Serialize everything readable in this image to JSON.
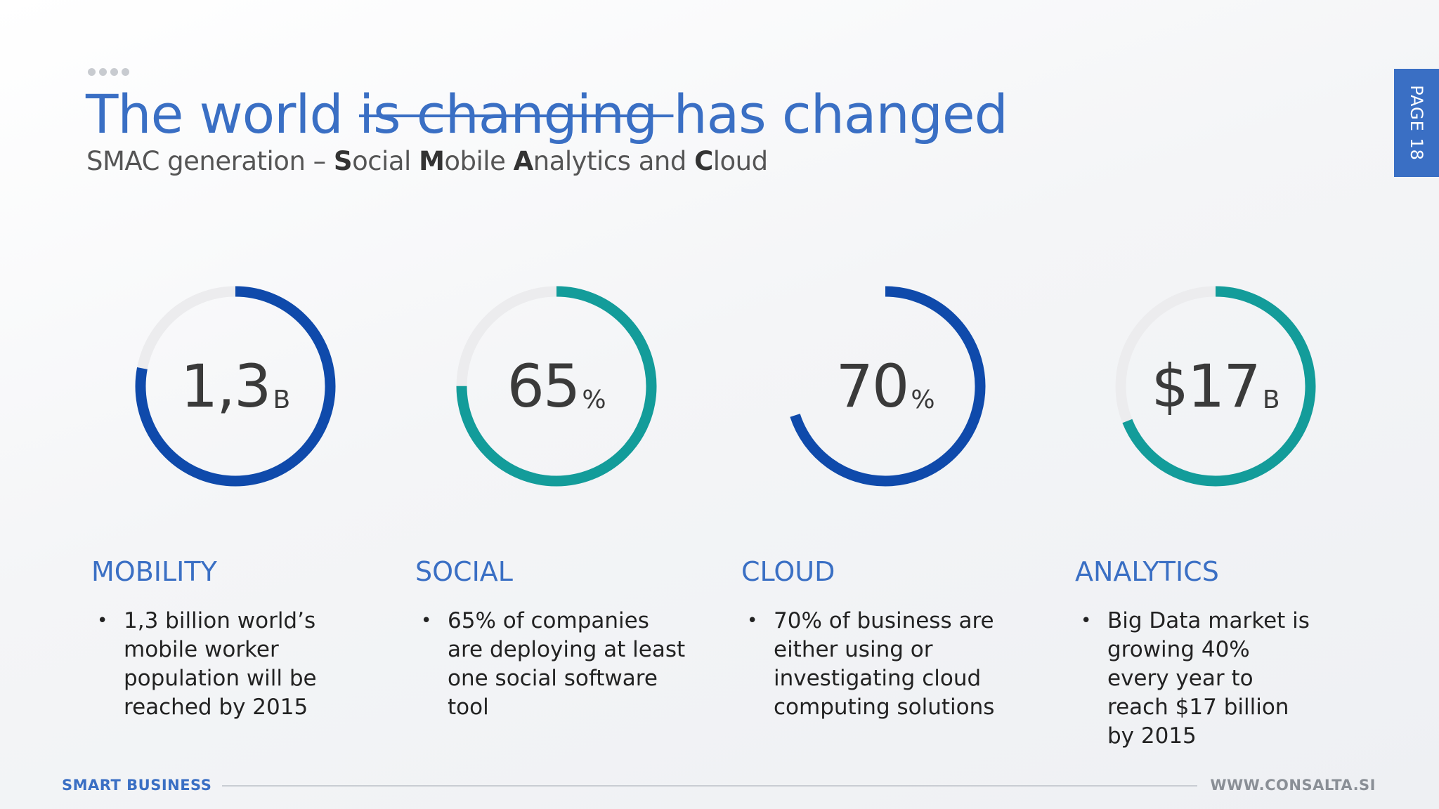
{
  "header": {
    "title_start": "The world ",
    "title_struck": "is changing ",
    "title_end": "has changed",
    "subtitle_parts": [
      {
        "text": "SMAC generation – ",
        "bold": false
      },
      {
        "text": "S",
        "bold": true
      },
      {
        "text": "ocial ",
        "bold": false
      },
      {
        "text": "M",
        "bold": true
      },
      {
        "text": "obile ",
        "bold": false
      },
      {
        "text": "A",
        "bold": true
      },
      {
        "text": "nalytics and ",
        "bold": false
      },
      {
        "text": "C",
        "bold": true
      },
      {
        "text": "loud",
        "bold": false
      }
    ]
  },
  "page_tab": "PAGE 18",
  "colors": {
    "blue": "#0f4aab",
    "teal": "#139c9a",
    "track": "#ececee",
    "accent": "#3a6fc4"
  },
  "stats": [
    {
      "value": "1,3",
      "unit": "B",
      "fraction": 0.78,
      "color": "blue"
    },
    {
      "value": "65",
      "unit": "%",
      "fraction": 0.75,
      "color": "teal"
    },
    {
      "value": "70",
      "unit": "%",
      "fraction": 0.7,
      "color": "blue"
    },
    {
      "value": "$17",
      "unit": "B",
      "fraction": 0.69,
      "color": "teal"
    }
  ],
  "cards": [
    {
      "heading": "MOBILITY",
      "bullet": "1,3 billion world’s mobile worker population will be reached by 2015"
    },
    {
      "heading": "SOCIAL",
      "bullet": "65% of companies are deploying at least one social software tool"
    },
    {
      "heading": "CLOUD",
      "bullet": "70% of business are either using or investigating cloud computing solutions"
    },
    {
      "heading": "ANALYTICS",
      "bullet": "Big Data market is growing 40% every year to reach $17 billion by 2015"
    }
  ],
  "footer": {
    "left": "SMART BUSINESS",
    "right": "WWW.CONSALTA.SI"
  }
}
